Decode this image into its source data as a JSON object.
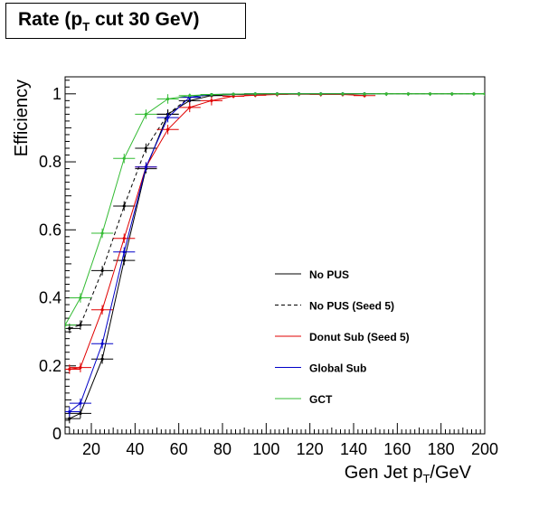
{
  "chart_data": {
    "type": "line",
    "title": "Rate (p_T cut 30 GeV)",
    "title_parts": {
      "pre": "Rate (p",
      "sub": "T",
      "post": " cut 30 GeV)"
    },
    "xlabel": "Gen Jet p_T/GeV",
    "xlabel_parts": {
      "pre": "Gen Jet p",
      "sub": "T",
      "post": "/GeV"
    },
    "ylabel": "Efficiency",
    "xlim": [
      8,
      200
    ],
    "ylim": [
      0,
      1.05
    ],
    "xticks": [
      "20",
      "40",
      "60",
      "80",
      "100",
      "120",
      "140",
      "160",
      "180",
      "200"
    ],
    "yticks": [
      "0",
      "0.2",
      "0.4",
      "0.6",
      "0.8",
      "1"
    ],
    "legend_position": "center-right",
    "series": [
      {
        "name": "No PUS",
        "color": "#000000",
        "dashed": false,
        "x": [
          10,
          15,
          25,
          35,
          45,
          55,
          65,
          75,
          85,
          95,
          105,
          115,
          125,
          135,
          145
        ],
        "y": [
          0.045,
          0.06,
          0.22,
          0.51,
          0.78,
          0.94,
          0.98,
          0.995,
          0.998,
          0.999,
          1.0,
          1.0,
          1.0,
          1.0,
          1.0
        ]
      },
      {
        "name": "No PUS (Seed 5)",
        "color": "#000000",
        "dashed": true,
        "x": [
          10,
          15,
          25,
          35,
          45,
          55,
          65,
          75,
          85,
          95,
          105,
          115,
          125,
          135,
          145,
          155,
          165,
          175,
          185,
          195
        ],
        "y": [
          0.31,
          0.32,
          0.48,
          0.67,
          0.84,
          0.94,
          0.99,
          0.998,
          0.999,
          1.0,
          1.0,
          1.0,
          1.0,
          1.0,
          1.0,
          1.0,
          1.0,
          1.0,
          1.0,
          1.0
        ]
      },
      {
        "name": "Donut Sub (Seed 5)",
        "color": "#e00000",
        "dashed": false,
        "x": [
          10,
          15,
          25,
          35,
          45,
          55,
          65,
          75,
          85,
          95,
          105,
          115,
          125,
          135,
          145
        ],
        "y": [
          0.19,
          0.195,
          0.365,
          0.575,
          0.785,
          0.895,
          0.96,
          0.98,
          0.993,
          0.996,
          0.998,
          0.999,
          0.998,
          0.998,
          0.995
        ]
      },
      {
        "name": "Global Sub",
        "color": "#0000c8",
        "dashed": false,
        "x": [
          10,
          15,
          25,
          35,
          45,
          55,
          65,
          75,
          85,
          95,
          105,
          115,
          125,
          135,
          145
        ],
        "y": [
          0.065,
          0.09,
          0.265,
          0.535,
          0.785,
          0.93,
          0.99,
          0.998,
          0.999,
          1.0,
          1.0,
          1.0,
          1.0,
          1.0,
          1.0
        ]
      },
      {
        "name": "GCT",
        "color": "#33bb33",
        "dashed": false,
        "x": [
          8,
          15,
          25,
          35,
          45,
          55,
          65,
          75,
          85,
          95,
          105,
          115,
          125,
          135,
          145,
          155,
          165,
          175,
          185,
          195,
          200
        ],
        "y": [
          0.32,
          0.4,
          0.59,
          0.81,
          0.94,
          0.985,
          0.995,
          0.998,
          0.999,
          1.0,
          1.0,
          1.0,
          1.0,
          1.0,
          1.0,
          1.0,
          1.0,
          1.0,
          1.0,
          1.0,
          1.0
        ]
      }
    ]
  }
}
